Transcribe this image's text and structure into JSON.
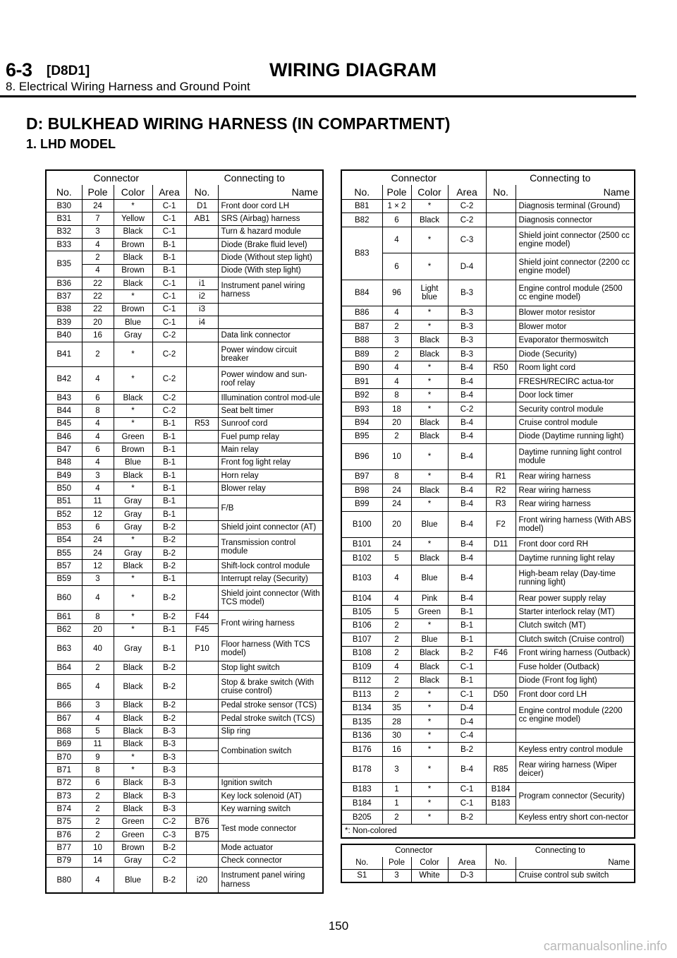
{
  "header": {
    "section": "6-3",
    "code": "[D8D1]",
    "title": "WIRING DIAGRAM",
    "subtitle": "8. Electrical Wiring Harness and Ground Point"
  },
  "heading": "D: BULKHEAD WIRING HARNESS (IN COMPARTMENT)",
  "subheading": "1. LHD MODEL",
  "group_headers": {
    "connector": "Connector",
    "connecting_to": "Connecting to"
  },
  "columns": [
    "No.",
    "Pole",
    "Color",
    "Area",
    "No.",
    "Name"
  ],
  "left_rows": [
    [
      "B30",
      "24",
      "*",
      "C-1",
      "D1",
      "Front door cord LH"
    ],
    [
      "B31",
      "7",
      "Yellow",
      "C-1",
      "AB1",
      "SRS (Airbag) harness"
    ],
    [
      "B32",
      "3",
      "Black",
      "C-1",
      "",
      "Turn & hazard module"
    ],
    [
      "B33",
      "4",
      "Brown",
      "B-1",
      "",
      "Diode (Brake fluid level)"
    ],
    [
      "B35",
      "2",
      "Black",
      "B-1",
      "",
      "Diode (Without step light)"
    ],
    [
      "",
      "4",
      "Brown",
      "B-1",
      "",
      "Diode (With step light)"
    ],
    [
      "B36",
      "22",
      "Black",
      "C-1",
      "i1",
      "Instrument panel wiring harness"
    ],
    [
      "B37",
      "22",
      "*",
      "C-1",
      "i2",
      ""
    ],
    [
      "B38",
      "22",
      "Brown",
      "C-1",
      "i3",
      ""
    ],
    [
      "B39",
      "20",
      "Blue",
      "C-1",
      "i4",
      ""
    ],
    [
      "B40",
      "16",
      "Gray",
      "C-2",
      "",
      "Data link connector"
    ],
    [
      "B41",
      "2",
      "*",
      "C-2",
      "",
      "Power window circuit breaker"
    ],
    [
      "B42",
      "4",
      "*",
      "C-2",
      "",
      "Power window and sun-roof relay"
    ],
    [
      "B43",
      "6",
      "Black",
      "C-2",
      "",
      "Illumination control mod-ule"
    ],
    [
      "B44",
      "8",
      "*",
      "C-2",
      "",
      "Seat belt timer"
    ],
    [
      "B45",
      "4",
      "*",
      "B-1",
      "R53",
      "Sunroof cord"
    ],
    [
      "B46",
      "4",
      "Green",
      "B-1",
      "",
      "Fuel pump relay"
    ],
    [
      "B47",
      "6",
      "Brown",
      "B-1",
      "",
      "Main relay"
    ],
    [
      "B48",
      "4",
      "Blue",
      "B-1",
      "",
      "Front fog light relay"
    ],
    [
      "B49",
      "3",
      "Black",
      "B-1",
      "",
      "Horn relay"
    ],
    [
      "B50",
      "4",
      "*",
      "B-1",
      "",
      "Blower relay"
    ],
    [
      "B51",
      "11",
      "Gray",
      "B-1",
      "",
      "F/B"
    ],
    [
      "B52",
      "12",
      "Gray",
      "B-1",
      "",
      ""
    ],
    [
      "B53",
      "6",
      "Gray",
      "B-2",
      "",
      "Shield joint connector (AT)"
    ],
    [
      "B54",
      "24",
      "*",
      "B-2",
      "",
      "Transmission control module"
    ],
    [
      "B55",
      "24",
      "Gray",
      "B-2",
      "",
      ""
    ],
    [
      "B57",
      "12",
      "Black",
      "B-2",
      "",
      "Shift-lock control module"
    ],
    [
      "B59",
      "3",
      "*",
      "B-1",
      "",
      "Interrupt relay (Security)"
    ],
    [
      "B60",
      "4",
      "*",
      "B-2",
      "",
      "Shield joint connector (With TCS model)"
    ],
    [
      "B61",
      "8",
      "*",
      "B-2",
      "F44",
      "Front wiring harness"
    ],
    [
      "B62",
      "20",
      "*",
      "B-1",
      "F45",
      ""
    ],
    [
      "B63",
      "40",
      "Gray",
      "B-1",
      "P10",
      "Floor harness (With TCS model)"
    ],
    [
      "B64",
      "2",
      "Black",
      "B-2",
      "",
      "Stop light switch"
    ],
    [
      "B65",
      "4",
      "Black",
      "B-2",
      "",
      "Stop & brake switch (With cruise control)"
    ],
    [
      "B66",
      "3",
      "Black",
      "B-2",
      "",
      "Pedal stroke sensor (TCS)"
    ],
    [
      "B67",
      "4",
      "Black",
      "B-2",
      "",
      "Pedal stroke switch (TCS)"
    ],
    [
      "B68",
      "5",
      "Black",
      "B-3",
      "",
      "Slip ring"
    ],
    [
      "B69",
      "11",
      "Black",
      "B-3",
      "",
      "Combination switch"
    ],
    [
      "B70",
      "9",
      "*",
      "B-3",
      "",
      ""
    ],
    [
      "B71",
      "8",
      "*",
      "B-3",
      "",
      ""
    ],
    [
      "B72",
      "6",
      "Black",
      "B-3",
      "",
      "Ignition switch"
    ],
    [
      "B73",
      "2",
      "Black",
      "B-3",
      "",
      "Key lock solenoid (AT)"
    ],
    [
      "B74",
      "2",
      "Black",
      "B-3",
      "",
      "Key warning switch"
    ],
    [
      "B75",
      "2",
      "Green",
      "C-2",
      "B76",
      "Test mode connector"
    ],
    [
      "B76",
      "2",
      "Green",
      "C-3",
      "B75",
      ""
    ],
    [
      "B77",
      "10",
      "Brown",
      "B-2",
      "",
      "Mode actuator"
    ],
    [
      "B79",
      "14",
      "Gray",
      "C-2",
      "",
      "Check connector"
    ],
    [
      "B80",
      "4",
      "Blue",
      "B-2",
      "i20",
      "Instrument panel wiring harness"
    ]
  ],
  "right_rows": [
    [
      "B81",
      "1 × 2",
      "*",
      "C-2",
      "",
      "Diagnosis terminal (Ground)"
    ],
    [
      "B82",
      "6",
      "Black",
      "C-2",
      "",
      "Diagnosis connector"
    ],
    [
      "B83",
      "4",
      "*",
      "C-3",
      "",
      "Shield joint connector (2500 cc engine model)"
    ],
    [
      "",
      "6",
      "*",
      "D-4",
      "",
      "Shield joint connector (2200 cc engine model)"
    ],
    [
      "B84",
      "96",
      "Light blue",
      "B-3",
      "",
      "Engine control module (2500 cc engine model)"
    ],
    [
      "B86",
      "4",
      "*",
      "B-3",
      "",
      "Blower motor resistor"
    ],
    [
      "B87",
      "2",
      "*",
      "B-3",
      "",
      "Blower motor"
    ],
    [
      "B88",
      "3",
      "Black",
      "B-3",
      "",
      "Evaporator thermoswitch"
    ],
    [
      "B89",
      "2",
      "Black",
      "B-3",
      "",
      "Diode (Security)"
    ],
    [
      "B90",
      "4",
      "*",
      "B-4",
      "R50",
      "Room light cord"
    ],
    [
      "B91",
      "4",
      "*",
      "B-4",
      "",
      "FRESH/RECIRC actua-tor"
    ],
    [
      "B92",
      "8",
      "*",
      "B-4",
      "",
      "Door lock timer"
    ],
    [
      "B93",
      "18",
      "*",
      "C-2",
      "",
      "Security control module"
    ],
    [
      "B94",
      "20",
      "Black",
      "B-4",
      "",
      "Cruise control module"
    ],
    [
      "B95",
      "2",
      "Black",
      "B-4",
      "",
      "Diode (Daytime running light)"
    ],
    [
      "B96",
      "10",
      "*",
      "B-4",
      "",
      "Daytime running light control module"
    ],
    [
      "B97",
      "8",
      "*",
      "B-4",
      "R1",
      "Rear wiring harness"
    ],
    [
      "B98",
      "24",
      "Black",
      "B-4",
      "R2",
      "Rear wiring harness"
    ],
    [
      "B99",
      "24",
      "*",
      "B-4",
      "R3",
      "Rear wiring harness"
    ],
    [
      "B100",
      "20",
      "Blue",
      "B-4",
      "F2",
      "Front wiring harness (With ABS model)"
    ],
    [
      "B101",
      "24",
      "*",
      "B-4",
      "D11",
      "Front door cord RH"
    ],
    [
      "B102",
      "5",
      "Black",
      "B-4",
      "",
      "Daytime running light relay"
    ],
    [
      "B103",
      "4",
      "Blue",
      "B-4",
      "",
      "High-beam relay (Day-time running light)"
    ],
    [
      "B104",
      "4",
      "Pink",
      "B-4",
      "",
      "Rear power supply relay"
    ],
    [
      "B105",
      "5",
      "Green",
      "B-1",
      "",
      "Starter interlock relay (MT)"
    ],
    [
      "B106",
      "2",
      "*",
      "B-1",
      "",
      "Clutch switch (MT)"
    ],
    [
      "B107",
      "2",
      "Blue",
      "B-1",
      "",
      "Clutch switch (Cruise control)"
    ],
    [
      "B108",
      "2",
      "Black",
      "B-2",
      "F46",
      "Front wiring harness (Outback)"
    ],
    [
      "B109",
      "4",
      "Black",
      "C-1",
      "",
      "Fuse holder (Outback)"
    ],
    [
      "B112",
      "2",
      "Black",
      "B-1",
      "",
      "Diode (Front fog light)"
    ],
    [
      "B113",
      "2",
      "*",
      "C-1",
      "D50",
      "Front door cord LH"
    ],
    [
      "B134",
      "35",
      "*",
      "D-4",
      "",
      "Engine control module (2200 cc engine model)"
    ],
    [
      "B135",
      "28",
      "*",
      "D-4",
      "",
      ""
    ],
    [
      "B136",
      "30",
      "*",
      "C-4",
      "",
      ""
    ],
    [
      "B176",
      "16",
      "*",
      "B-2",
      "",
      "Keyless entry control module"
    ],
    [
      "B178",
      "3",
      "*",
      "B-4",
      "R85",
      "Rear wiring harness (Wiper deicer)"
    ],
    [
      "B183",
      "1",
      "*",
      "C-1",
      "B184",
      "Program connector (Security)"
    ],
    [
      "B184",
      "1",
      "*",
      "C-1",
      "B183",
      ""
    ],
    [
      "B205",
      "2",
      "*",
      "B-2",
      "",
      "Keyless entry short con-nector"
    ]
  ],
  "footnote": "*: Non-colored",
  "small_rows": [
    [
      "S1",
      "3",
      "White",
      "D-3",
      "",
      "Cruise control sub switch"
    ]
  ],
  "page_number": "150",
  "watermark": "carmanualsonline.info"
}
